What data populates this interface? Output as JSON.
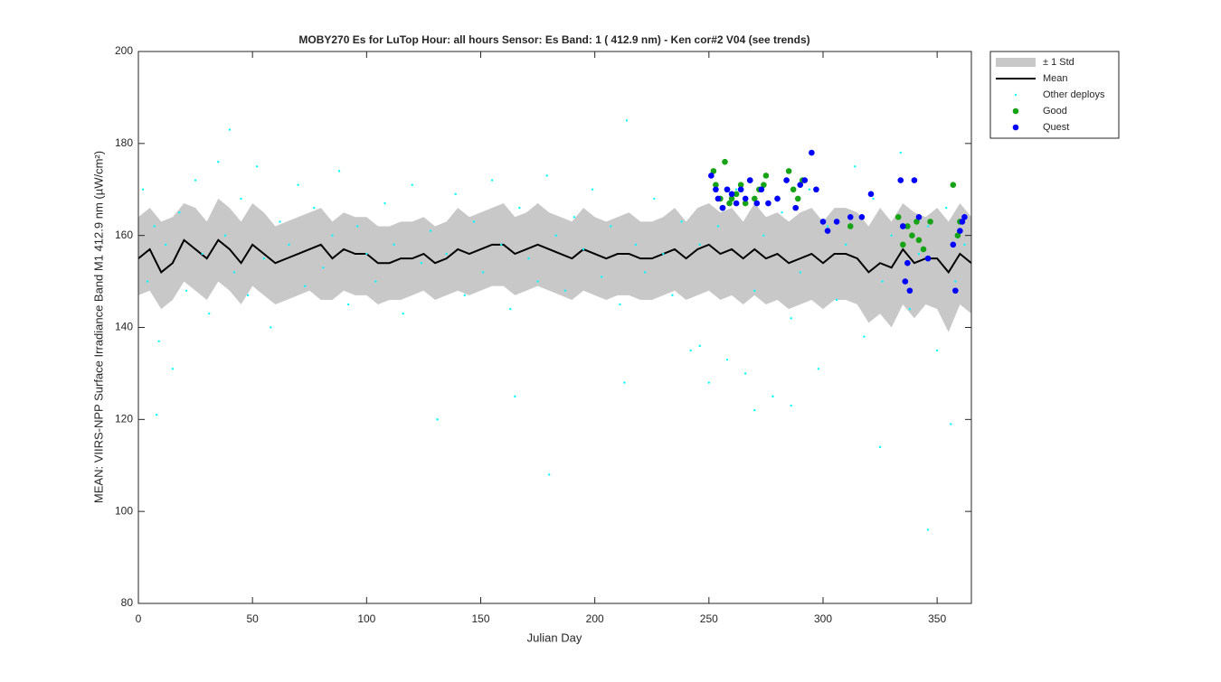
{
  "chart_data": {
    "type": "scatter",
    "title": "MOBY270   Es for LuTop  Hour: all hours  Sensor: Es Band: 1 ( 412.9 nm)  - Ken cor#2 V04 (see trends)",
    "x_label": "Julian Day",
    "y_label": "MEAN: VIIRS-NPP Surface Irradiance Band M1 412.9 nm (µW/cm²)",
    "xlim": [
      0,
      365
    ],
    "ylim": [
      80,
      200
    ],
    "xticks": [
      0,
      50,
      100,
      150,
      200,
      250,
      300,
      350
    ],
    "yticks": [
      80,
      100,
      120,
      140,
      160,
      180,
      200
    ],
    "legend": "outside-top-right",
    "x": [
      0,
      5,
      10,
      15,
      20,
      25,
      30,
      35,
      40,
      45,
      50,
      55,
      60,
      65,
      70,
      75,
      80,
      85,
      90,
      95,
      100,
      105,
      110,
      115,
      120,
      125,
      130,
      135,
      140,
      145,
      150,
      155,
      160,
      165,
      170,
      175,
      180,
      185,
      190,
      195,
      200,
      205,
      210,
      215,
      220,
      225,
      230,
      235,
      240,
      245,
      250,
      255,
      260,
      265,
      270,
      275,
      280,
      285,
      290,
      295,
      300,
      305,
      310,
      315,
      320,
      325,
      330,
      335,
      340,
      345,
      350,
      355,
      360,
      365
    ],
    "series": [
      {
        "name": "± 1 Std",
        "kind": "band",
        "color": "#c8c8c8",
        "upper": [
          164,
          166,
          163,
          164,
          167,
          166,
          163,
          168,
          166,
          163,
          167,
          165,
          162,
          163,
          164,
          165,
          166,
          163,
          165,
          164,
          164,
          162,
          162,
          163,
          163,
          164,
          162,
          163,
          166,
          164,
          165,
          166,
          167,
          164,
          165,
          167,
          165,
          164,
          163,
          166,
          164,
          163,
          164,
          165,
          163,
          163,
          164,
          166,
          163,
          166,
          167,
          165,
          166,
          163,
          167,
          164,
          165,
          163,
          165,
          166,
          163,
          166,
          166,
          165,
          162,
          166,
          163,
          167,
          165,
          164,
          166,
          163,
          167,
          164
        ],
        "lower": [
          147,
          148,
          144,
          146,
          150,
          148,
          146,
          150,
          148,
          145,
          149,
          147,
          145,
          146,
          147,
          148,
          146,
          146,
          148,
          147,
          147,
          145,
          146,
          146,
          147,
          148,
          146,
          147,
          148,
          147,
          148,
          149,
          149,
          147,
          148,
          149,
          148,
          147,
          146,
          148,
          147,
          146,
          147,
          147,
          146,
          146,
          147,
          148,
          146,
          147,
          148,
          146,
          147,
          145,
          147,
          145,
          146,
          144,
          145,
          146,
          144,
          146,
          146,
          145,
          141,
          143,
          140,
          145,
          142,
          145,
          144,
          139,
          145,
          143
        ]
      },
      {
        "name": "Mean",
        "kind": "line",
        "color": "#000000",
        "values": [
          155,
          157,
          152,
          154,
          159,
          157,
          155,
          159,
          157,
          154,
          158,
          156,
          154,
          155,
          156,
          157,
          158,
          155,
          157,
          156,
          156,
          154,
          154,
          155,
          155,
          156,
          154,
          155,
          157,
          156,
          157,
          158,
          158,
          156,
          157,
          158,
          157,
          156,
          155,
          157,
          156,
          155,
          156,
          156,
          155,
          155,
          156,
          157,
          155,
          157,
          158,
          156,
          157,
          155,
          157,
          155,
          156,
          154,
          155,
          156,
          154,
          156,
          156,
          155,
          152,
          154,
          153,
          157,
          154,
          155,
          155,
          152,
          156,
          154
        ]
      },
      {
        "name": "Other deploys",
        "kind": "scatter",
        "color": "#00ffff",
        "x": [
          2,
          4,
          7,
          9,
          12,
          15,
          18,
          21,
          25,
          28,
          31,
          35,
          38,
          42,
          45,
          48,
          52,
          55,
          58,
          62,
          66,
          70,
          73,
          77,
          81,
          85,
          88,
          92,
          96,
          100,
          104,
          108,
          112,
          116,
          120,
          124,
          128,
          131,
          135,
          139,
          143,
          147,
          151,
          155,
          159,
          163,
          167,
          171,
          175,
          179,
          183,
          187,
          191,
          195,
          199,
          203,
          207,
          211,
          214,
          218,
          222,
          226,
          230,
          234,
          238,
          242,
          246,
          250,
          254,
          258,
          262,
          266,
          270,
          274,
          278,
          282,
          286,
          290,
          294,
          298,
          302,
          306,
          310,
          314,
          318,
          322,
          326,
          330,
          334,
          338,
          342,
          346,
          350,
          354,
          358,
          362,
          8,
          40,
          131,
          165,
          180,
          213,
          246,
          270,
          286,
          325,
          346,
          356
        ],
        "values": [
          170,
          150,
          162,
          137,
          158,
          131,
          165,
          148,
          172,
          156,
          143,
          176,
          160,
          152,
          168,
          147,
          175,
          155,
          140,
          163,
          158,
          171,
          149,
          166,
          153,
          160,
          174,
          145,
          162,
          156,
          150,
          167,
          158,
          143,
          171,
          154,
          161,
          120,
          156,
          169,
          147,
          163,
          152,
          172,
          158,
          144,
          166,
          155,
          150,
          173,
          160,
          148,
          164,
          157,
          170,
          151,
          162,
          145,
          185,
          158,
          152,
          168,
          156,
          147,
          163,
          135,
          158,
          128,
          162,
          133,
          170,
          130,
          148,
          160,
          125,
          165,
          142,
          152,
          170,
          131,
          162,
          146,
          158,
          175,
          138,
          168,
          150,
          160,
          178,
          144,
          156,
          162,
          135,
          166,
          150,
          158,
          121,
          183,
          120,
          125,
          108,
          128,
          136,
          122,
          123,
          114,
          96,
          119
        ]
      },
      {
        "name": "Good",
        "kind": "scatter",
        "color": "#16a316",
        "x": [
          252,
          253,
          255,
          256,
          257,
          258,
          259,
          260,
          262,
          264,
          266,
          268,
          270,
          272,
          274,
          275,
          280,
          285,
          287,
          289,
          291,
          312,
          333,
          335,
          337,
          339,
          341,
          342,
          344,
          347,
          357,
          359,
          360
        ],
        "values": [
          174,
          171,
          168,
          166,
          176,
          170,
          167,
          168,
          169,
          171,
          167,
          172,
          168,
          170,
          171,
          173,
          168,
          174,
          170,
          168,
          172,
          162,
          164,
          158,
          162,
          160,
          163,
          159,
          157,
          163,
          171,
          160,
          163
        ]
      },
      {
        "name": "Quest",
        "kind": "scatter",
        "color": "#0000ff",
        "x": [
          251,
          253,
          254,
          256,
          258,
          260,
          262,
          264,
          266,
          268,
          271,
          273,
          276,
          280,
          284,
          288,
          290,
          292,
          295,
          297,
          300,
          302,
          306,
          312,
          317,
          321,
          334,
          335,
          336,
          337,
          338,
          340,
          342,
          346,
          357,
          358,
          360,
          361,
          362
        ],
        "values": [
          173,
          170,
          168,
          166,
          170,
          169,
          167,
          170,
          168,
          172,
          167,
          170,
          167,
          168,
          172,
          166,
          171,
          172,
          178,
          170,
          163,
          161,
          163,
          164,
          164,
          169,
          172,
          162,
          150,
          154,
          148,
          172,
          164,
          155,
          158,
          148,
          161,
          163,
          164
        ]
      }
    ]
  }
}
